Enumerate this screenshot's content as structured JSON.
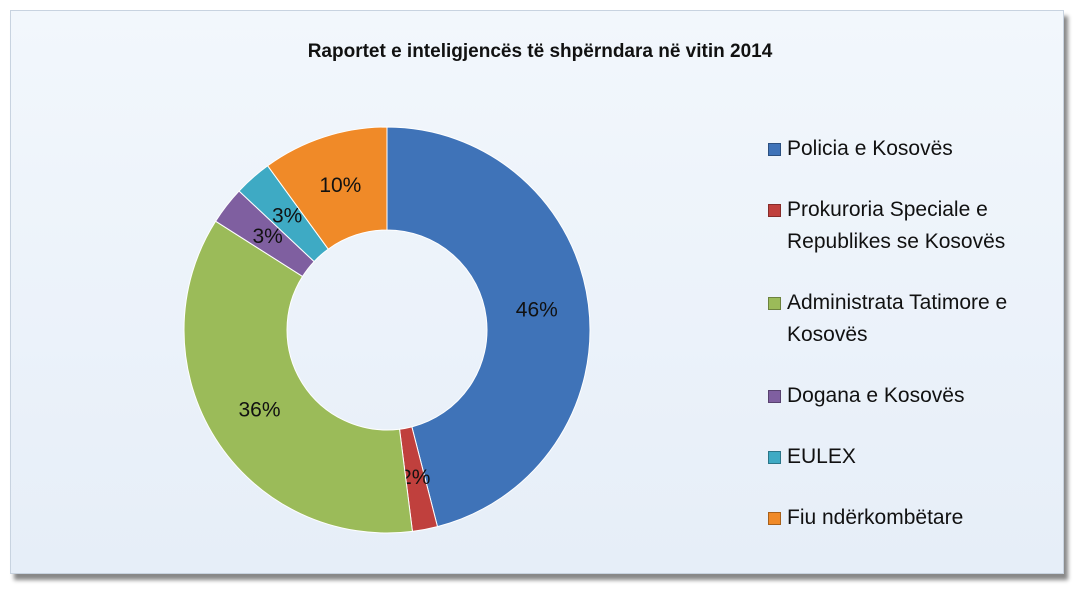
{
  "chart_data": {
    "type": "donut",
    "title": "Raportet e inteligjencës të shpërndara në vitin 2014",
    "categories": [
      "Policia e Kosovës",
      "Prokuroria Speciale e Republikes se Kosovës",
      "Administrata Tatimore e Kosovës",
      "Dogana e Kosovës",
      "EULEX",
      "Fiu ndërkombëtare"
    ],
    "values": [
      46,
      2,
      36,
      3,
      3,
      10
    ],
    "value_labels": [
      "46%",
      "2%",
      "36%",
      "3%",
      "3%",
      "10%"
    ],
    "colors": [
      "#3f73b8",
      "#c0403d",
      "#9bbb59",
      "#7f5fa0",
      "#3eaac4",
      "#f08a28"
    ],
    "legend": "right"
  }
}
